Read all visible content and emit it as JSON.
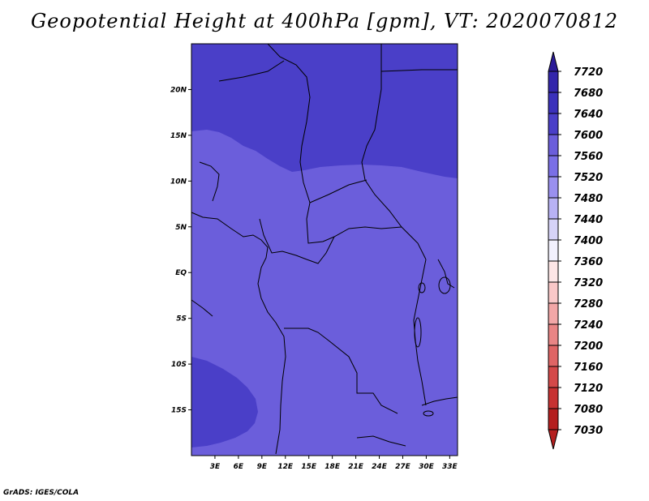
{
  "title": "Geopotential Height at 400hPa [gpm], VT: 2020070812",
  "footer": "GrADS: IGES/COLA",
  "map": {
    "lon_range": [
      0,
      34
    ],
    "lat_range": [
      -20,
      25
    ],
    "lon_ticks": [
      "3E",
      "6E",
      "9E",
      "12E",
      "15E",
      "18E",
      "21E",
      "24E",
      "27E",
      "30E",
      "33E"
    ],
    "lat_ticks": [
      "20N",
      "15N",
      "10N",
      "5N",
      "EQ",
      "5S",
      "10S",
      "15S"
    ],
    "fill_colors": {
      "level_7560": "#6b5edb",
      "level_7600": "#4a3fc8"
    }
  },
  "colorbar": {
    "levels": [
      "7720",
      "7680",
      "7640",
      "7600",
      "7560",
      "7520",
      "7480",
      "7440",
      "7400",
      "7360",
      "7320",
      "7280",
      "7240",
      "7200",
      "7160",
      "7120",
      "7080",
      "7030"
    ],
    "colors": [
      "#2a1a98",
      "#3326ab",
      "#3b31bb",
      "#4a3fc8",
      "#6b5edb",
      "#7a6fe6",
      "#9a90ef",
      "#b8b2f4",
      "#d6d3f8",
      "#f2f1fd",
      "#fde6e6",
      "#f9c8c8",
      "#f2a7a7",
      "#e98585",
      "#df6565",
      "#d44949",
      "#c73232",
      "#b41f1f"
    ]
  }
}
